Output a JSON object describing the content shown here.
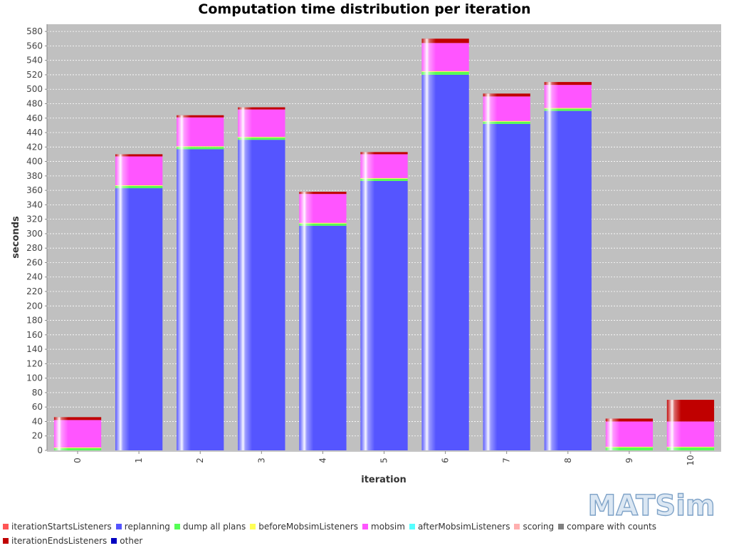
{
  "chart_data": {
    "type": "bar",
    "stacked": true,
    "title": "Computation time distribution per iteration",
    "xlabel": "iteration",
    "ylabel": "seconds",
    "ylim": [
      0,
      590
    ],
    "ytick_step": 20,
    "grid": true,
    "legend_position": "bottom",
    "background": "#c0c0c0",
    "categories": [
      "0",
      "1",
      "2",
      "3",
      "4",
      "5",
      "6",
      "7",
      "8",
      "9",
      "10"
    ],
    "series": [
      {
        "name": "iterationStartsListeners",
        "color": "#ff5555",
        "values": [
          0,
          0,
          0,
          0,
          0,
          0,
          0,
          0,
          0,
          0,
          0
        ]
      },
      {
        "name": "replanning",
        "color": "#5555ff",
        "values": [
          0,
          363,
          417,
          430,
          311,
          373,
          520,
          452,
          470,
          0,
          0
        ]
      },
      {
        "name": "dump all plans",
        "color": "#55ff55",
        "values": [
          3,
          3,
          3,
          3,
          3,
          3,
          4,
          3,
          3,
          4,
          4
        ]
      },
      {
        "name": "beforeMobsimListeners",
        "color": "#ffff55",
        "values": [
          1,
          1,
          1,
          1,
          1,
          1,
          1,
          1,
          1,
          1,
          1
        ]
      },
      {
        "name": "mobsim",
        "color": "#ff55ff",
        "values": [
          38,
          40,
          40,
          38,
          40,
          33,
          39,
          34,
          32,
          35,
          35
        ]
      },
      {
        "name": "afterMobsimListeners",
        "color": "#55ffff",
        "values": [
          0,
          0,
          0,
          0,
          0,
          0,
          0,
          0,
          0,
          0,
          0
        ]
      },
      {
        "name": "scoring",
        "color": "#ffafaf",
        "values": [
          0,
          0,
          0,
          0,
          0,
          0,
          0,
          0,
          0,
          0,
          0
        ]
      },
      {
        "name": "compare with counts",
        "color": "#808080",
        "values": [
          0,
          0,
          0,
          0,
          0,
          0,
          0,
          0,
          0,
          0,
          0
        ]
      },
      {
        "name": "iterationEndsListeners",
        "color": "#c00000",
        "values": [
          4,
          3,
          3,
          3,
          3,
          3,
          6,
          4,
          4,
          4,
          30
        ]
      },
      {
        "name": "other",
        "color": "#0000c0",
        "values": [
          0,
          0,
          0,
          0,
          0,
          0,
          0,
          0,
          0,
          0,
          0
        ]
      }
    ]
  },
  "logo": {
    "text": "MATSim"
  }
}
